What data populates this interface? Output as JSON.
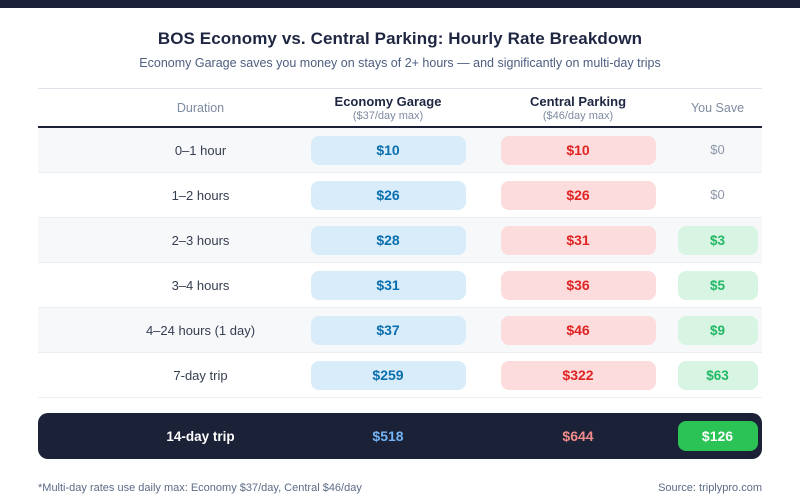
{
  "page": {
    "title": "BOS Economy vs. Central Parking: Hourly Rate Breakdown",
    "subtitle": "Economy Garage saves you money on stays of 2+ hours — and significantly on multi-day trips"
  },
  "table": {
    "columns": {
      "duration_label": "Duration",
      "economy_label": "Economy Garage",
      "economy_sub": "($37/day max)",
      "central_label": "Central Parking",
      "central_sub": "($46/day max)",
      "save_label": "You Save"
    },
    "rows": [
      {
        "duration": "0–1 hour",
        "economy": "$10",
        "central": "$10",
        "save": "$0",
        "save_highlight": false
      },
      {
        "duration": "1–2 hours",
        "economy": "$26",
        "central": "$26",
        "save": "$0",
        "save_highlight": false
      },
      {
        "duration": "2–3 hours",
        "economy": "$28",
        "central": "$31",
        "save": "$3",
        "save_highlight": true
      },
      {
        "duration": "3–4 hours",
        "economy": "$31",
        "central": "$36",
        "save": "$5",
        "save_highlight": true
      },
      {
        "duration": "4–24 hours (1 day)",
        "economy": "$37",
        "central": "$46",
        "save": "$9",
        "save_highlight": true
      },
      {
        "duration": "7-day trip",
        "economy": "$259",
        "central": "$322",
        "save": "$63",
        "save_highlight": true
      }
    ],
    "summary_row": {
      "duration": "14-day trip",
      "economy": "$518",
      "central": "$644",
      "save": "$126"
    }
  },
  "footer": {
    "note": "*Multi-day rates use daily max: Economy $37/day, Central $46/day",
    "source": "Source: triplypro.com"
  },
  "colors": {
    "accent_dark_navy": "#1b2136",
    "economy_text": "#0a6fae",
    "economy_bg": "#d9ecfa",
    "central_text": "#e02424",
    "central_bg": "#fcdcdc",
    "save_text": "#22b866",
    "save_bg": "#d7f5e2",
    "summary_save_bg": "#2bc356",
    "muted_text": "#7e8ba1"
  }
}
